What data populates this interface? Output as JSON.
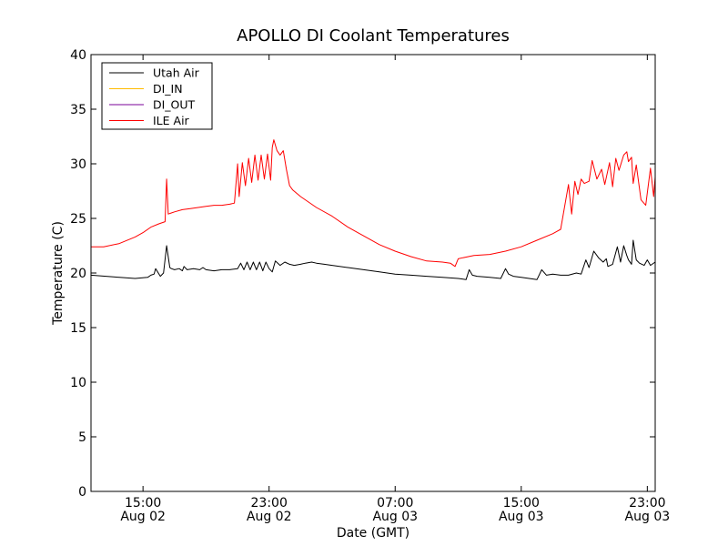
{
  "chart_data": {
    "type": "line",
    "title": "APOLLO DI Coolant Temperatures",
    "xlabel": "Date (GMT)",
    "ylabel": "Temperature (C)",
    "x_unit": "hours since Aug 02 00:00 GMT",
    "xlim": [
      11.7,
      47.5
    ],
    "ylim": [
      0,
      40
    ],
    "y_ticks": [
      0,
      5,
      10,
      15,
      20,
      25,
      30,
      35,
      40
    ],
    "x_ticks": [
      {
        "value": 15,
        "line1": "15:00",
        "line2": "Aug 02"
      },
      {
        "value": 23,
        "line1": "23:00",
        "line2": "Aug 02"
      },
      {
        "value": 31,
        "line1": "07:00",
        "line2": "Aug 03"
      },
      {
        "value": 39,
        "line1": "15:00",
        "line2": "Aug 03"
      },
      {
        "value": 47,
        "line1": "23:00",
        "line2": "Aug 03"
      }
    ],
    "legend_position": "top-left",
    "series": [
      {
        "name": "Utah Air",
        "color": "#000000",
        "x": [
          11.7,
          13.5,
          14.5,
          15.3,
          15.5,
          15.7,
          15.8,
          16.1,
          16.3,
          16.5,
          16.7,
          16.8,
          17.0,
          17.3,
          17.5,
          17.6,
          17.8,
          18.2,
          18.6,
          18.8,
          19.0,
          19.5,
          20.0,
          20.5,
          21.0,
          21.2,
          21.4,
          21.6,
          21.8,
          22.0,
          22.2,
          22.4,
          22.6,
          22.8,
          23.0,
          23.2,
          23.4,
          23.7,
          24.0,
          24.3,
          24.6,
          25.0,
          25.3,
          25.7,
          26.0,
          26.5,
          27.0,
          28.0,
          29.0,
          30.0,
          31.0,
          32.0,
          33.0,
          34.0,
          35.0,
          35.5,
          35.7,
          35.9,
          36.2,
          37.0,
          37.7,
          38.0,
          38.2,
          38.5,
          39.0,
          39.5,
          40.0,
          40.3,
          40.6,
          41.0,
          41.5,
          42.0,
          42.5,
          42.8,
          43.1,
          43.3,
          43.6,
          43.9,
          44.2,
          44.4,
          44.5,
          44.8,
          45.1,
          45.3,
          45.5,
          45.7,
          45.8,
          46.0,
          46.1,
          46.3,
          46.5,
          46.8,
          47.0,
          47.2,
          47.5
        ],
        "y": [
          19.8,
          19.6,
          19.5,
          19.6,
          19.8,
          19.9,
          20.4,
          19.7,
          20.0,
          22.5,
          20.5,
          20.4,
          20.3,
          20.4,
          20.2,
          20.6,
          20.3,
          20.4,
          20.3,
          20.5,
          20.3,
          20.2,
          20.3,
          20.3,
          20.4,
          20.9,
          20.3,
          21.0,
          20.3,
          21.0,
          20.3,
          21.0,
          20.2,
          21.0,
          20.4,
          20.1,
          21.1,
          20.7,
          21.0,
          20.8,
          20.7,
          20.8,
          20.9,
          21.0,
          20.9,
          20.8,
          20.7,
          20.5,
          20.3,
          20.1,
          19.9,
          19.8,
          19.7,
          19.6,
          19.5,
          19.4,
          20.3,
          19.8,
          19.7,
          19.6,
          19.5,
          20.4,
          19.9,
          19.7,
          19.6,
          19.5,
          19.4,
          20.3,
          19.8,
          19.9,
          19.8,
          19.8,
          20.0,
          19.9,
          21.2,
          20.5,
          22.0,
          21.4,
          21.0,
          21.3,
          20.6,
          20.8,
          22.4,
          21.0,
          22.5,
          21.6,
          21.2,
          20.8,
          23.0,
          21.2,
          20.9,
          20.7,
          21.2,
          20.7,
          21.0
        ]
      },
      {
        "name": "DI_IN",
        "color": "#ffbb00",
        "x": [],
        "y": []
      },
      {
        "name": "DI_OUT",
        "color": "#7a0099",
        "x": [],
        "y": []
      },
      {
        "name": "ILE Air",
        "color": "#ff0000",
        "x": [
          11.7,
          12.5,
          13.5,
          14.5,
          15.0,
          15.5,
          16.0,
          16.4,
          16.5,
          16.6,
          16.8,
          17.0,
          17.5,
          18.0,
          18.5,
          19.0,
          19.5,
          20.0,
          20.5,
          20.8,
          21.0,
          21.1,
          21.3,
          21.5,
          21.7,
          21.9,
          22.1,
          22.3,
          22.5,
          22.7,
          22.9,
          23.1,
          23.2,
          23.3,
          23.5,
          23.7,
          23.9,
          24.1,
          24.3,
          24.5,
          25.0,
          25.5,
          26.0,
          27.0,
          28.0,
          29.0,
          30.0,
          31.0,
          32.0,
          33.0,
          34.0,
          34.5,
          34.8,
          35.0,
          35.3,
          36.0,
          37.0,
          38.0,
          39.0,
          40.0,
          41.0,
          41.5,
          42.0,
          42.2,
          42.4,
          42.6,
          42.8,
          43.0,
          43.3,
          43.5,
          43.8,
          44.1,
          44.3,
          44.6,
          44.8,
          45.0,
          45.2,
          45.5,
          45.7,
          45.8,
          46.0,
          46.1,
          46.3,
          46.6,
          46.9,
          47.2,
          47.4,
          47.5
        ],
        "y": [
          22.4,
          22.4,
          22.7,
          23.3,
          23.7,
          24.2,
          24.5,
          24.7,
          28.6,
          25.4,
          25.5,
          25.6,
          25.8,
          25.9,
          26.0,
          26.1,
          26.2,
          26.2,
          26.3,
          26.4,
          30.0,
          27.0,
          30.1,
          28.0,
          30.5,
          28.3,
          30.8,
          28.5,
          30.8,
          28.6,
          30.9,
          28.5,
          31.5,
          32.2,
          31.2,
          30.8,
          31.2,
          29.5,
          28.0,
          27.6,
          27.0,
          26.5,
          26.0,
          25.2,
          24.2,
          23.4,
          22.6,
          22.0,
          21.5,
          21.1,
          21.0,
          20.9,
          20.6,
          21.3,
          21.4,
          21.6,
          21.7,
          22.0,
          22.4,
          23.0,
          23.6,
          24.0,
          28.1,
          25.4,
          28.4,
          27.2,
          28.6,
          28.2,
          28.4,
          30.3,
          28.6,
          29.5,
          28.1,
          30.1,
          27.9,
          30.5,
          29.4,
          30.8,
          31.1,
          30.2,
          30.6,
          28.2,
          29.9,
          26.7,
          26.2,
          29.6,
          27.0,
          28.8
        ]
      }
    ]
  }
}
